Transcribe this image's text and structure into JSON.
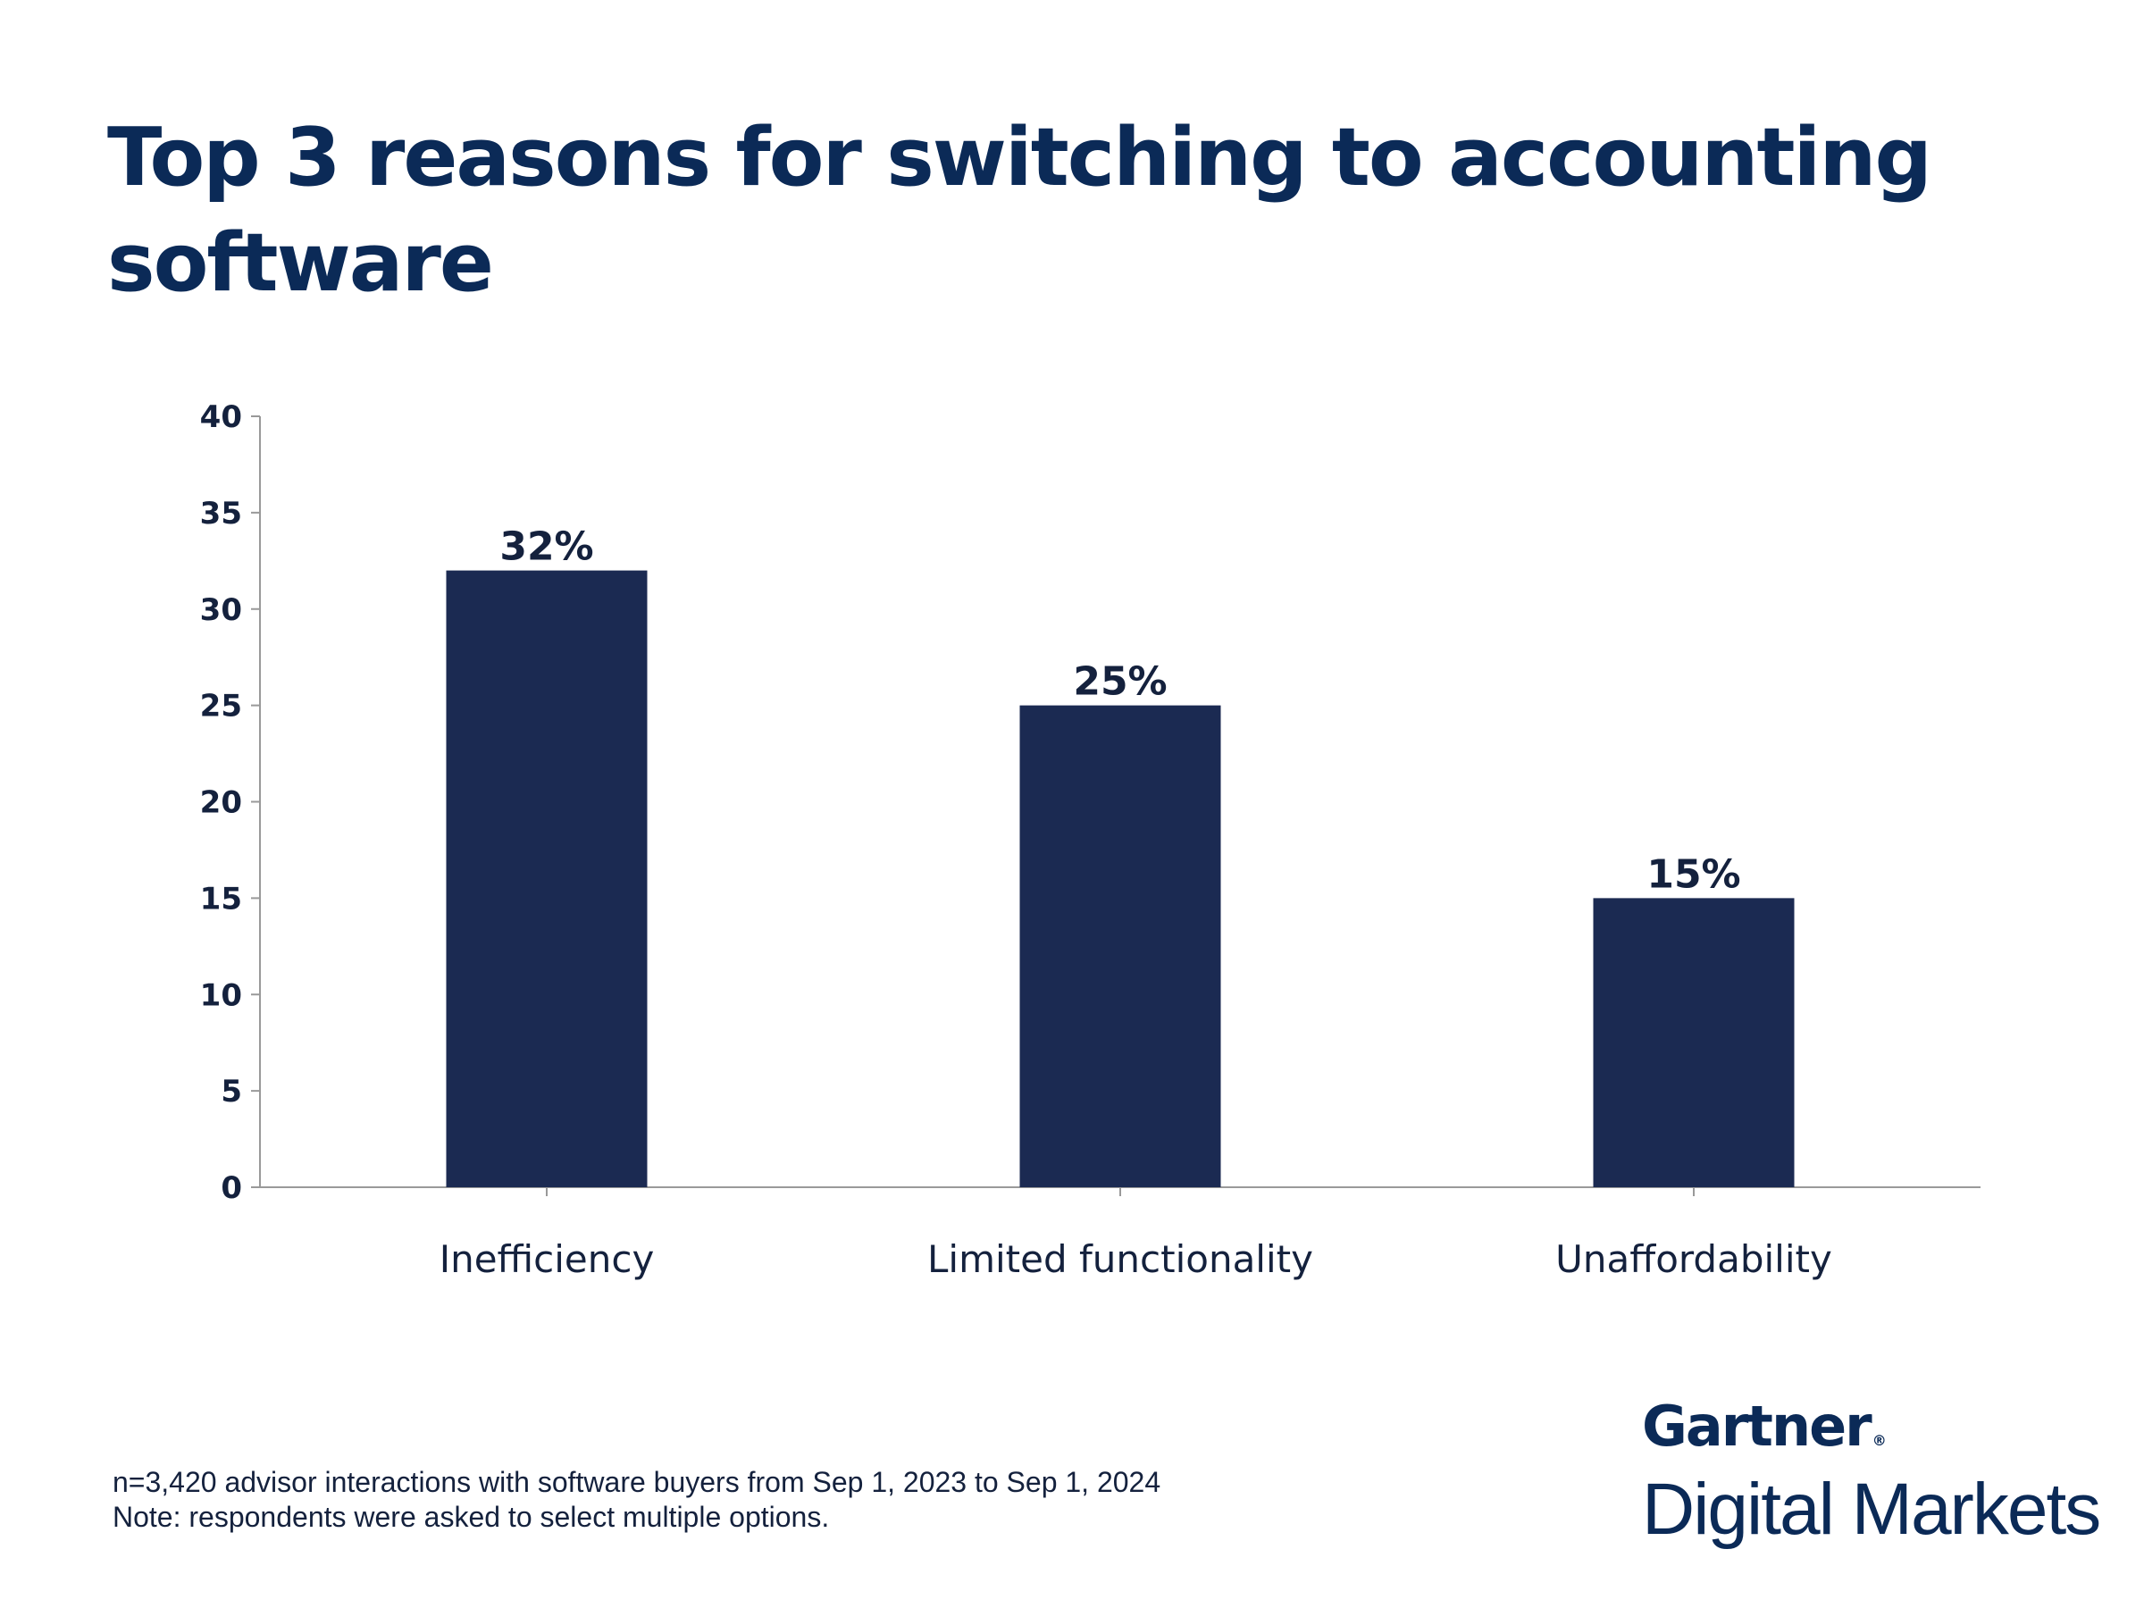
{
  "title": "Top 3 reasons for switching to accounting software",
  "chart_data": {
    "type": "bar",
    "title": "Top 3 reasons for switching to accounting software",
    "categories": [
      "Inefficiency",
      "Limited functionality",
      "Unaffordability"
    ],
    "values": [
      32,
      25,
      15
    ],
    "value_labels": [
      "32%",
      "25%",
      "15%"
    ],
    "ylim": [
      0,
      40
    ],
    "yticks": [
      0,
      5,
      10,
      15,
      20,
      25,
      30,
      35,
      40
    ],
    "xlabel": "",
    "ylabel": "",
    "grid": false,
    "bar_color": "#1b2a52"
  },
  "footnote": {
    "line1": "n=3,420 advisor interactions with software buyers from Sep 1, 2023 to Sep 1, 2024",
    "line2": "Note: respondents were asked to select multiple options."
  },
  "logo": {
    "brand": "Gartner",
    "registered": "®",
    "sub": "Digital Markets"
  }
}
